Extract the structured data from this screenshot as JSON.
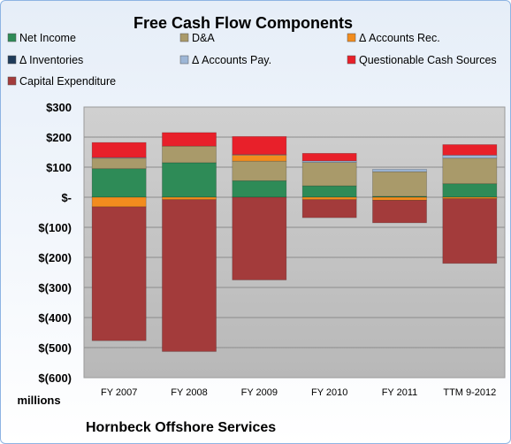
{
  "chart_data": {
    "type": "bar",
    "stacked": true,
    "title": "Free Cash Flow Components",
    "company": "Hornbeck Offshore Services",
    "units_label": "millions",
    "categories": [
      "FY 2007",
      "FY 2008",
      "FY 2009",
      "FY 2010",
      "FY 2011",
      "TTM 9-2012"
    ],
    "ylim": [
      -600,
      300
    ],
    "yticks": [
      -600,
      -500,
      -400,
      -300,
      -200,
      -100,
      0,
      100,
      200,
      300
    ],
    "ytick_labels": [
      "$(600)",
      "$(500)",
      "$(400)",
      "$(300)",
      "$(200)",
      "$(100)",
      "$-",
      "$100",
      "$200",
      "$300"
    ],
    "legend_position": "top",
    "grid": true,
    "series": [
      {
        "name": "Net Income",
        "color": "#2e8b57",
        "values": [
          95,
          115,
          55,
          38,
          3,
          45
        ]
      },
      {
        "name": "D&A",
        "color": "#a99a6a",
        "values": [
          35,
          55,
          65,
          78,
          82,
          85
        ]
      },
      {
        "name": "Δ Accounts Rec.",
        "color": "#f28c1e",
        "values": [
          -32,
          -8,
          20,
          -8,
          -10,
          -5
        ]
      },
      {
        "name": "Δ Inventories",
        "color": "#1f3b5a",
        "values": [
          0,
          0,
          0,
          0,
          0,
          0
        ]
      },
      {
        "name": "Δ Accounts Pay.",
        "color": "#9db6d6",
        "values": [
          2,
          0,
          2,
          5,
          8,
          10
        ]
      },
      {
        "name": "Questionable Cash Sources",
        "color": "#e8202a",
        "values": [
          50,
          45,
          60,
          25,
          0,
          35
        ]
      },
      {
        "name": "Capital Expenditure",
        "color": "#a33b3b",
        "values": [
          -445,
          -505,
          -275,
          -60,
          -75,
          -215
        ]
      }
    ]
  }
}
